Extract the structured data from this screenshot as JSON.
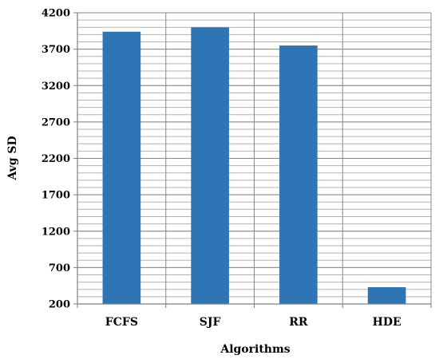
{
  "chart_data": {
    "type": "bar",
    "title": "",
    "xlabel": "Algorithms",
    "ylabel": "Avg SD",
    "categories": [
      "FCFS",
      "SJF",
      "RR",
      "HDE"
    ],
    "values": [
      3940,
      4000,
      3750,
      430
    ],
    "ylim": [
      200,
      4200
    ],
    "yticks": [
      200,
      700,
      1200,
      1700,
      2200,
      2700,
      3200,
      3700,
      4200
    ],
    "minor_grid_step": 100,
    "grid": true,
    "legend": "none",
    "bar_color": "#2e75b6"
  }
}
